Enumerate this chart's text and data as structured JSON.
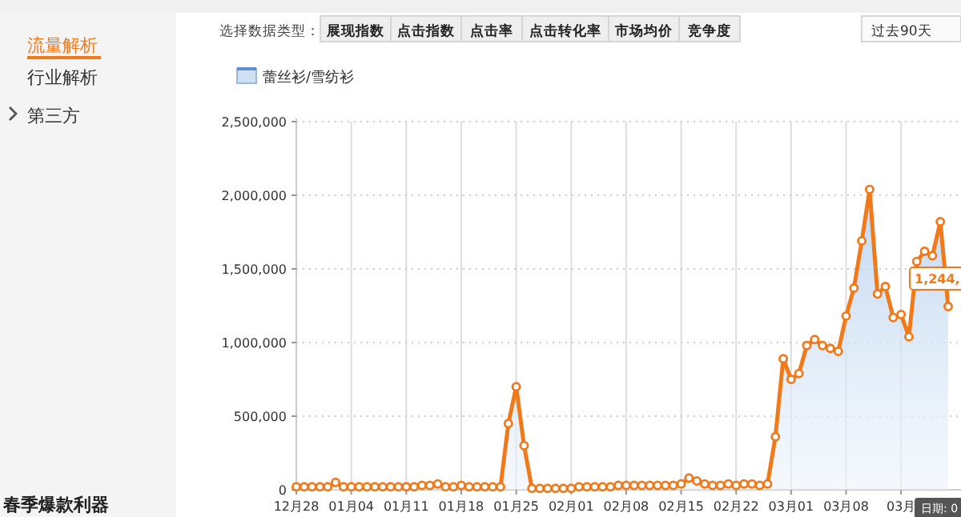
{
  "chart_data": {
    "type": "area",
    "categories": [
      "12月28",
      null,
      null,
      null,
      null,
      null,
      null,
      "01月04",
      null,
      null,
      null,
      null,
      null,
      null,
      "01月11",
      null,
      null,
      null,
      null,
      null,
      null,
      "01月18",
      null,
      null,
      null,
      null,
      null,
      null,
      "01月25",
      null,
      null,
      null,
      null,
      null,
      null,
      "02月01",
      null,
      null,
      null,
      null,
      null,
      null,
      "02月08",
      null,
      null,
      null,
      null,
      null,
      null,
      "02月15",
      null,
      null,
      null,
      null,
      null,
      null,
      "02月22",
      null,
      null,
      null,
      null,
      null,
      null,
      "03月01",
      null,
      null,
      null,
      null,
      null,
      null,
      "03月08",
      null,
      null,
      null,
      null,
      null,
      null,
      "03月",
      null,
      null,
      null,
      null,
      null,
      null
    ],
    "series": [
      {
        "name": "蕾丝衫/雪纺衫",
        "color": "#f07a1a",
        "values": [
          20000,
          20000,
          20000,
          20000,
          20000,
          50000,
          20000,
          20000,
          20000,
          20000,
          20000,
          20000,
          20000,
          20000,
          20000,
          20000,
          30000,
          30000,
          40000,
          20000,
          20000,
          30000,
          20000,
          20000,
          20000,
          20000,
          20000,
          450000,
          700000,
          300000,
          10000,
          10000,
          10000,
          10000,
          10000,
          10000,
          20000,
          20000,
          20000,
          20000,
          20000,
          30000,
          30000,
          30000,
          30000,
          30000,
          30000,
          30000,
          30000,
          40000,
          80000,
          60000,
          40000,
          30000,
          30000,
          40000,
          30000,
          40000,
          40000,
          30000,
          40000,
          360000,
          890000,
          750000,
          790000,
          980000,
          1020000,
          980000,
          960000,
          940000,
          1180000,
          1370000,
          1690000,
          2040000,
          1330000,
          1380000,
          1170000,
          1190000,
          1040000,
          1550000,
          1620000,
          1590000,
          1820000,
          1244000
        ]
      }
    ],
    "ylim": [
      0,
      2500000
    ],
    "yticks": [
      0,
      {
        "value": 500000,
        "label": "500,000"
      },
      {
        "value": 1000000,
        "label": "1,000,000"
      },
      {
        "value": 1500000,
        "label": "1,500,000"
      },
      {
        "value": 2000000,
        "label": "2,000,000"
      },
      {
        "value": 2500000,
        "label": "2,500,000"
      }
    ],
    "grid": true,
    "legend": "top left",
    "marker": "circle",
    "line_style": "solid",
    "annotations": [
      "流量解析",
      "行业解析",
      "第三方",
      "选择数据类型：",
      "展现指数",
      "点击指数",
      "点击率",
      "点击转化率",
      "市场均价",
      "竞争度",
      "过去90天",
      "春季爆款利器",
      "1,244,",
      "日期: 0"
    ]
  }
}
